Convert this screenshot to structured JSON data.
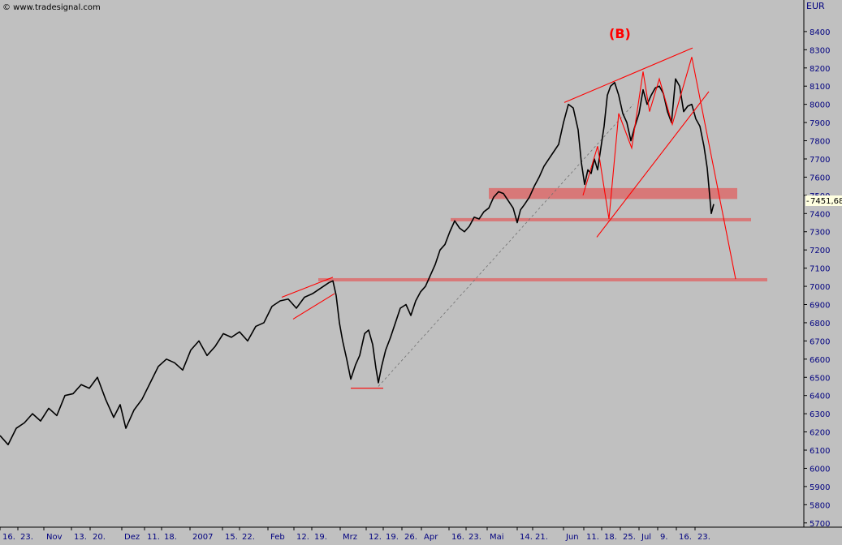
{
  "source_label": "© www.tradesignal.com",
  "wave_label": "(B)",
  "colors": {
    "background": "#c0c0c0",
    "price": "#000000",
    "annotation": "#ff0000",
    "zone": "#e06060",
    "axis_text": "#000080",
    "axis_line": "#000000"
  },
  "chart_data": {
    "type": "line",
    "title": "",
    "ylabel": "EUR",
    "ylim": [
      5700,
      8500
    ],
    "y_ticks": [
      5700,
      5800,
      5900,
      6000,
      6100,
      6200,
      6300,
      6400,
      6500,
      6600,
      6700,
      6800,
      6900,
      7000,
      7100,
      7200,
      7300,
      7400,
      7500,
      7600,
      7700,
      7800,
      7900,
      8000,
      8100,
      8200,
      8300,
      8400
    ],
    "current_value": "7451,68",
    "x_labels": [
      "16.",
      "23.",
      "Nov",
      "13.",
      "20.",
      "Dez",
      "11.",
      "18.",
      "2007",
      "15.",
      "22.",
      "Feb",
      "12.",
      "19.",
      "Mrz",
      "12.",
      "19.",
      "26.",
      "Apr",
      "16.",
      "23.",
      "Mai",
      "14.",
      "21.",
      "Jun",
      "11.",
      "18.",
      "25.",
      "Jul",
      "9.",
      "16.",
      "23."
    ],
    "series": [
      {
        "values": [
          [
            0,
            6180
          ],
          [
            10,
            6130
          ],
          [
            20,
            6220
          ],
          [
            30,
            6250
          ],
          [
            40,
            6300
          ],
          [
            50,
            6260
          ],
          [
            60,
            6330
          ],
          [
            70,
            6290
          ],
          [
            80,
            6400
          ],
          [
            90,
            6410
          ],
          [
            100,
            6460
          ],
          [
            110,
            6440
          ],
          [
            120,
            6500
          ],
          [
            130,
            6380
          ],
          [
            140,
            6280
          ],
          [
            148,
            6350
          ],
          [
            155,
            6220
          ],
          [
            165,
            6320
          ],
          [
            175,
            6380
          ],
          [
            185,
            6470
          ],
          [
            195,
            6560
          ],
          [
            205,
            6600
          ],
          [
            215,
            6580
          ],
          [
            225,
            6540
          ],
          [
            235,
            6650
          ],
          [
            245,
            6700
          ],
          [
            255,
            6620
          ],
          [
            265,
            6670
          ],
          [
            275,
            6740
          ],
          [
            285,
            6720
          ],
          [
            295,
            6750
          ],
          [
            305,
            6700
          ],
          [
            315,
            6780
          ],
          [
            325,
            6800
          ],
          [
            335,
            6890
          ],
          [
            345,
            6920
          ],
          [
            355,
            6930
          ],
          [
            365,
            6880
          ],
          [
            375,
            6940
          ],
          [
            385,
            6960
          ],
          [
            395,
            6990
          ],
          [
            405,
            7020
          ],
          [
            410,
            7030
          ],
          [
            414,
            6950
          ],
          [
            418,
            6800
          ],
          [
            422,
            6700
          ],
          [
            427,
            6600
          ],
          [
            432,
            6490
          ],
          [
            438,
            6570
          ],
          [
            443,
            6620
          ],
          [
            449,
            6740
          ],
          [
            454,
            6760
          ],
          [
            459,
            6680
          ],
          [
            463,
            6550
          ],
          [
            466,
            6470
          ],
          [
            470,
            6560
          ],
          [
            475,
            6650
          ],
          [
            481,
            6720
          ],
          [
            487,
            6800
          ],
          [
            493,
            6880
          ],
          [
            500,
            6900
          ],
          [
            506,
            6840
          ],
          [
            512,
            6920
          ],
          [
            518,
            6970
          ],
          [
            524,
            7000
          ],
          [
            530,
            7060
          ],
          [
            536,
            7120
          ],
          [
            542,
            7200
          ],
          [
            548,
            7230
          ],
          [
            554,
            7300
          ],
          [
            560,
            7360
          ],
          [
            566,
            7320
          ],
          [
            572,
            7300
          ],
          [
            578,
            7330
          ],
          [
            584,
            7380
          ],
          [
            590,
            7370
          ],
          [
            596,
            7410
          ],
          [
            602,
            7430
          ],
          [
            608,
            7490
          ],
          [
            614,
            7520
          ],
          [
            620,
            7510
          ],
          [
            626,
            7470
          ],
          [
            632,
            7430
          ],
          [
            637,
            7350
          ],
          [
            641,
            7420
          ],
          [
            646,
            7450
          ],
          [
            652,
            7490
          ],
          [
            658,
            7550
          ],
          [
            664,
            7600
          ],
          [
            670,
            7660
          ],
          [
            676,
            7700
          ],
          [
            682,
            7740
          ],
          [
            688,
            7780
          ],
          [
            694,
            7900
          ],
          [
            700,
            8000
          ],
          [
            706,
            7980
          ],
          [
            712,
            7860
          ],
          [
            716,
            7680
          ],
          [
            720,
            7560
          ],
          [
            724,
            7640
          ],
          [
            728,
            7620
          ],
          [
            732,
            7700
          ],
          [
            736,
            7640
          ],
          [
            740,
            7760
          ],
          [
            744,
            7880
          ],
          [
            748,
            8050
          ],
          [
            752,
            8100
          ],
          [
            757,
            8120
          ],
          [
            762,
            8050
          ],
          [
            767,
            7950
          ],
          [
            772,
            7900
          ],
          [
            777,
            7800
          ],
          [
            782,
            7880
          ],
          [
            787,
            7950
          ],
          [
            792,
            8080
          ],
          [
            797,
            8000
          ],
          [
            802,
            8050
          ],
          [
            807,
            8090
          ],
          [
            812,
            8100
          ],
          [
            817,
            8060
          ],
          [
            822,
            7960
          ],
          [
            827,
            7900
          ],
          [
            832,
            8140
          ],
          [
            837,
            8100
          ],
          [
            842,
            7960
          ],
          [
            847,
            7990
          ],
          [
            852,
            8000
          ],
          [
            857,
            7920
          ],
          [
            862,
            7880
          ],
          [
            867,
            7770
          ],
          [
            871,
            7650
          ],
          [
            874,
            7500
          ],
          [
            876,
            7400
          ],
          [
            879,
            7451.68
          ]
        ]
      }
    ],
    "horizontal_levels": [
      {
        "from_x": 602,
        "to_x": 908,
        "low": 7480,
        "high": 7540
      },
      {
        "from_x": 555,
        "to_x": 925,
        "low": 7360,
        "high": 7375
      },
      {
        "from_x": 392,
        "to_x": 945,
        "low": 7030,
        "high": 7045
      }
    ],
    "trend_lines": [
      {
        "points": [
          [
            695,
            8010
          ],
          [
            853,
            8310
          ]
        ]
      },
      {
        "points": [
          [
            735,
            7270
          ],
          [
            873,
            8070
          ]
        ]
      },
      {
        "points": [
          [
            347,
            6940
          ],
          [
            410,
            7050
          ]
        ]
      },
      {
        "points": [
          [
            361,
            6820
          ],
          [
            412,
            6960
          ]
        ]
      },
      {
        "points": [
          [
            432,
            6440
          ],
          [
            472,
            6440
          ]
        ]
      },
      {
        "points": [
          [
            718,
            7500
          ],
          [
            736,
            7770
          ],
          [
            750,
            7370
          ],
          [
            762,
            7950
          ],
          [
            778,
            7760
          ],
          [
            792,
            8180
          ],
          [
            800,
            7960
          ],
          [
            812,
            8140
          ],
          [
            828,
            7890
          ],
          [
            852,
            8260
          ],
          [
            906,
            7040
          ]
        ]
      }
    ],
    "guide_lines": [
      {
        "points": [
          [
            466,
            6450
          ],
          [
            780,
            8000
          ]
        ]
      }
    ]
  }
}
